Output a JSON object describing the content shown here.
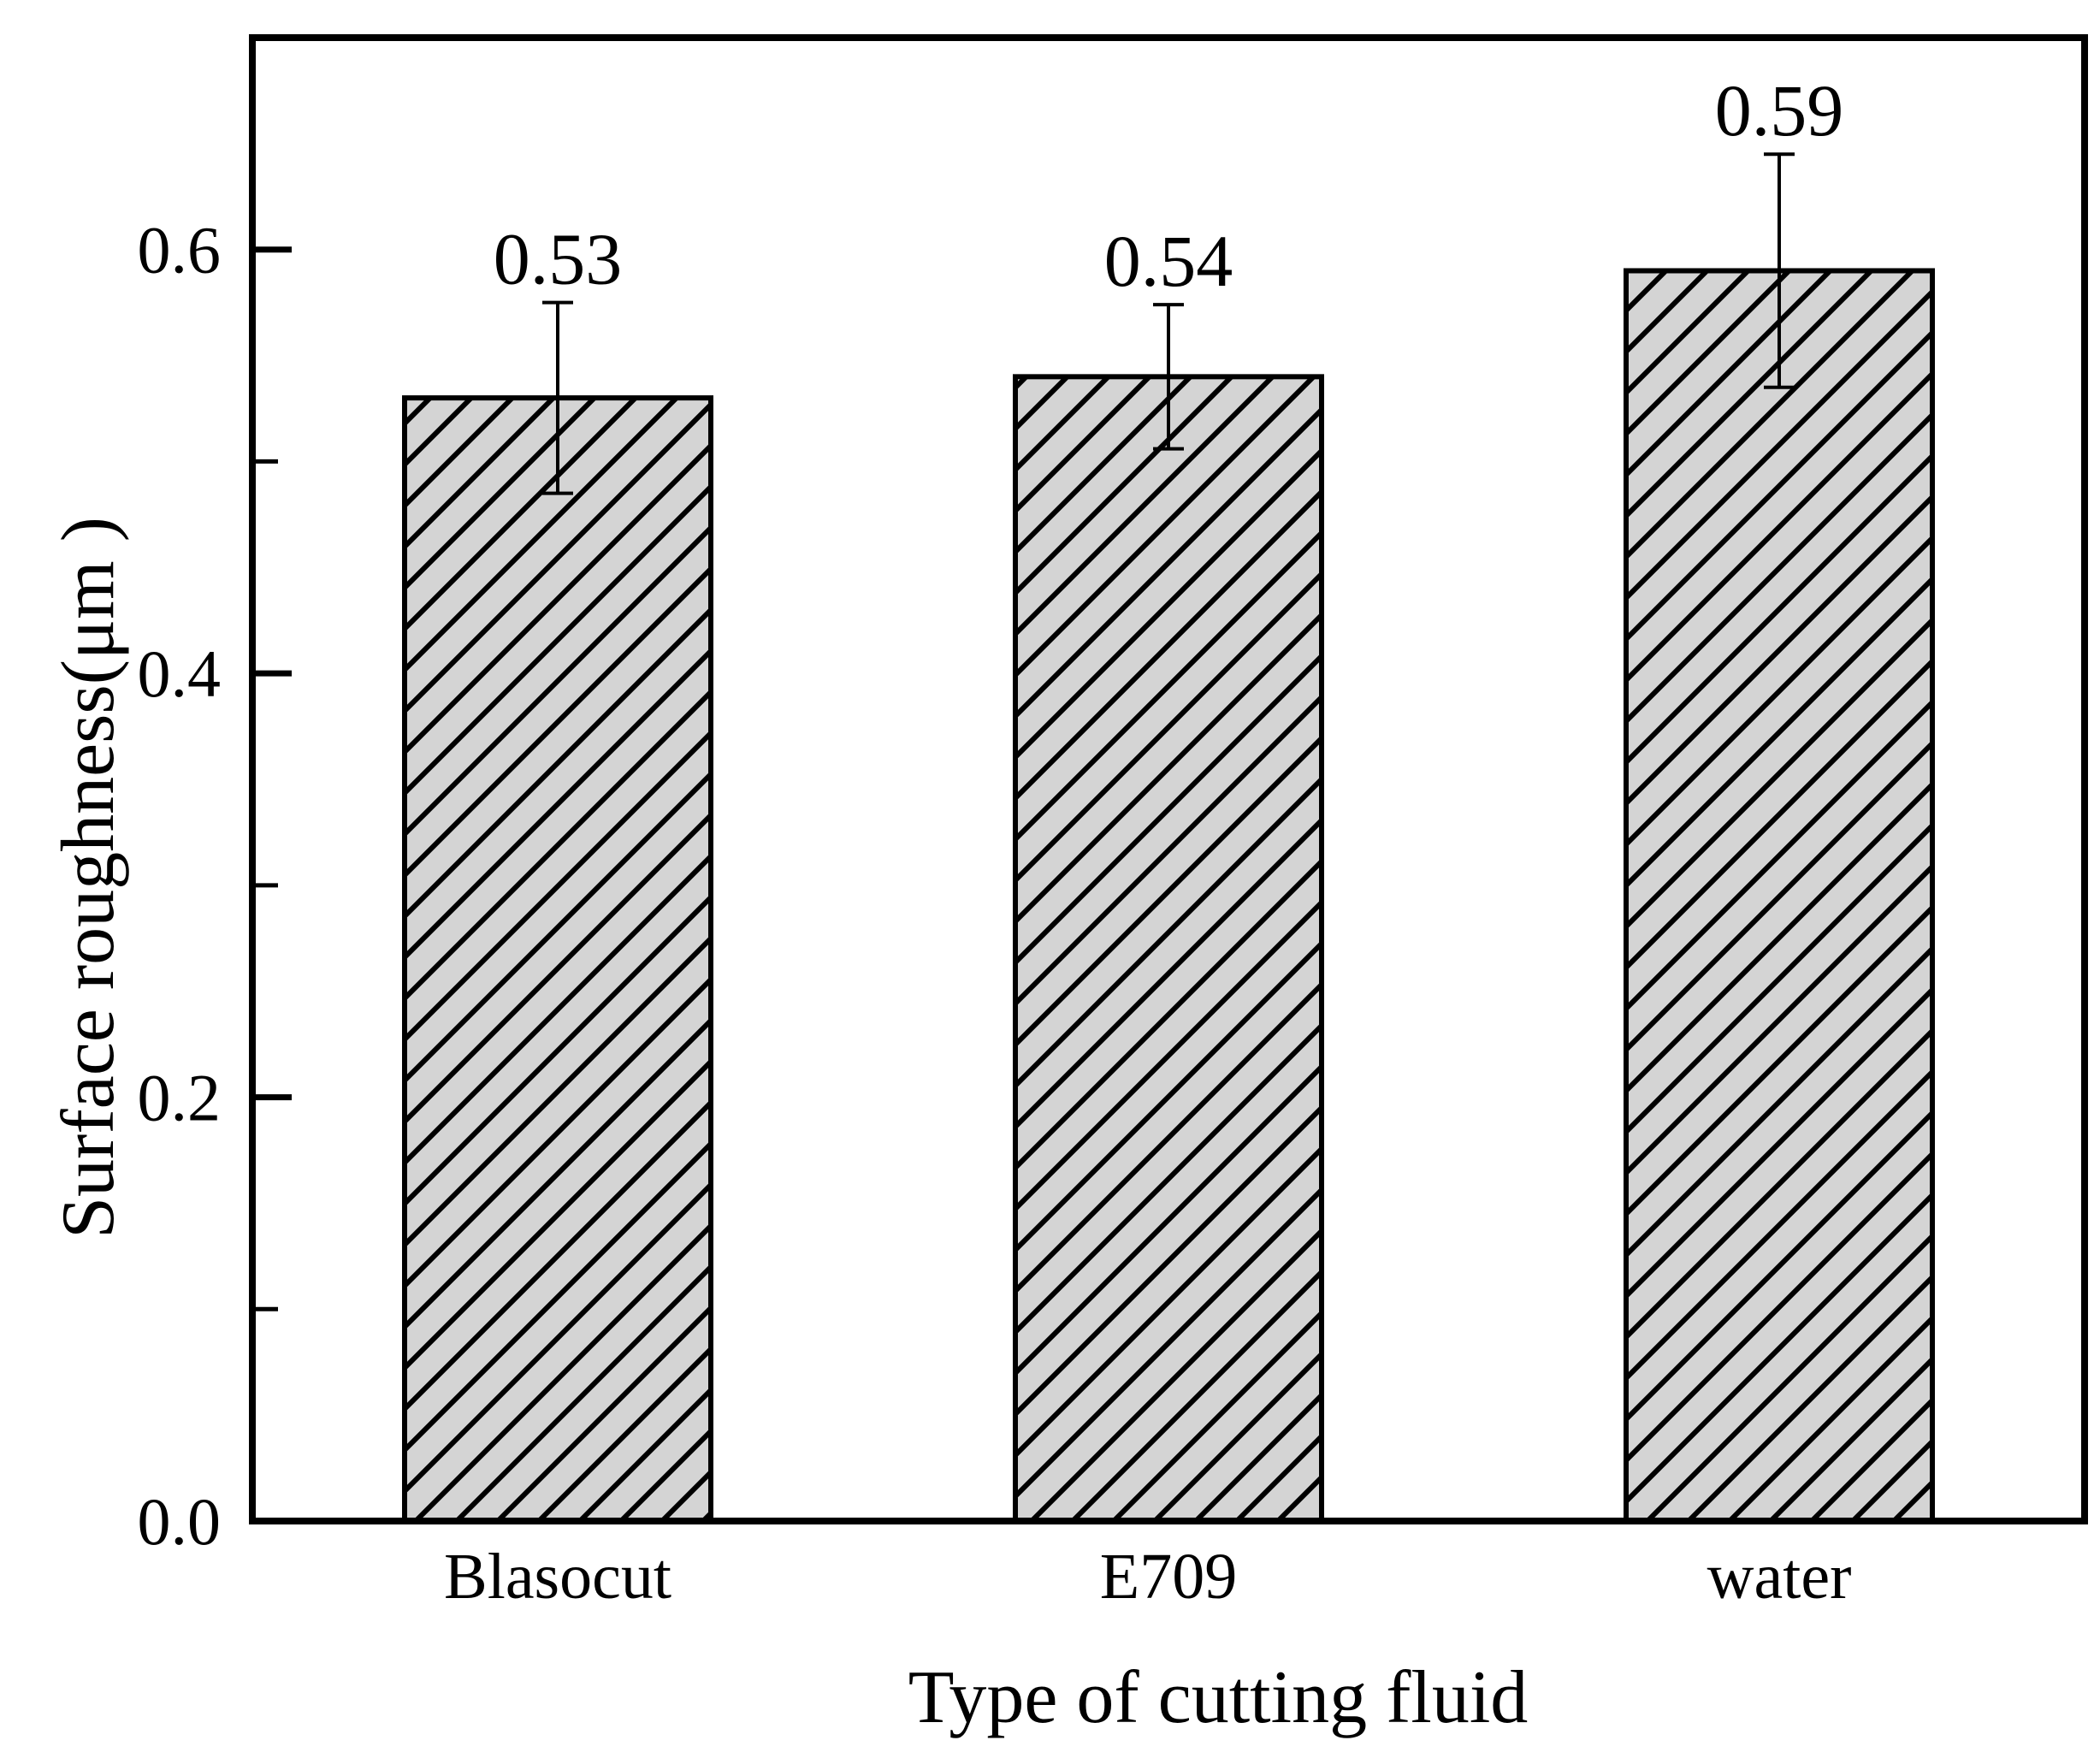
{
  "page": {
    "background": "#ffffff"
  },
  "chart_data": {
    "type": "bar",
    "title": "",
    "categories": [
      "Blasocut",
      "E709",
      "water"
    ],
    "values": [
      0.53,
      0.54,
      0.59
    ],
    "errors": [
      0.045,
      0.034,
      0.055
    ],
    "value_labels": [
      "0.53",
      "0.54",
      "0.59"
    ],
    "xlabel": "Type of cutting fluid",
    "ylabel": "Surface roughness(μm )",
    "ylim": [
      0.0,
      0.7
    ],
    "y_major_ticks": [
      0.0,
      0.2,
      0.4,
      0.6
    ],
    "y_major_tick_labels": [
      "0.0",
      "0.2",
      "0.4",
      "0.6"
    ],
    "y_minor_ticks": [
      0.1,
      0.3,
      0.5
    ],
    "x_ticks_visible": false,
    "grid": false,
    "legend": false,
    "bar_style": {
      "fill": "#d4d4d4",
      "hatch": "forward-diagonal",
      "hatch_color": "#000000",
      "edge_color": "#000000"
    },
    "frame_color": "#000000",
    "text_color": "#000000"
  }
}
